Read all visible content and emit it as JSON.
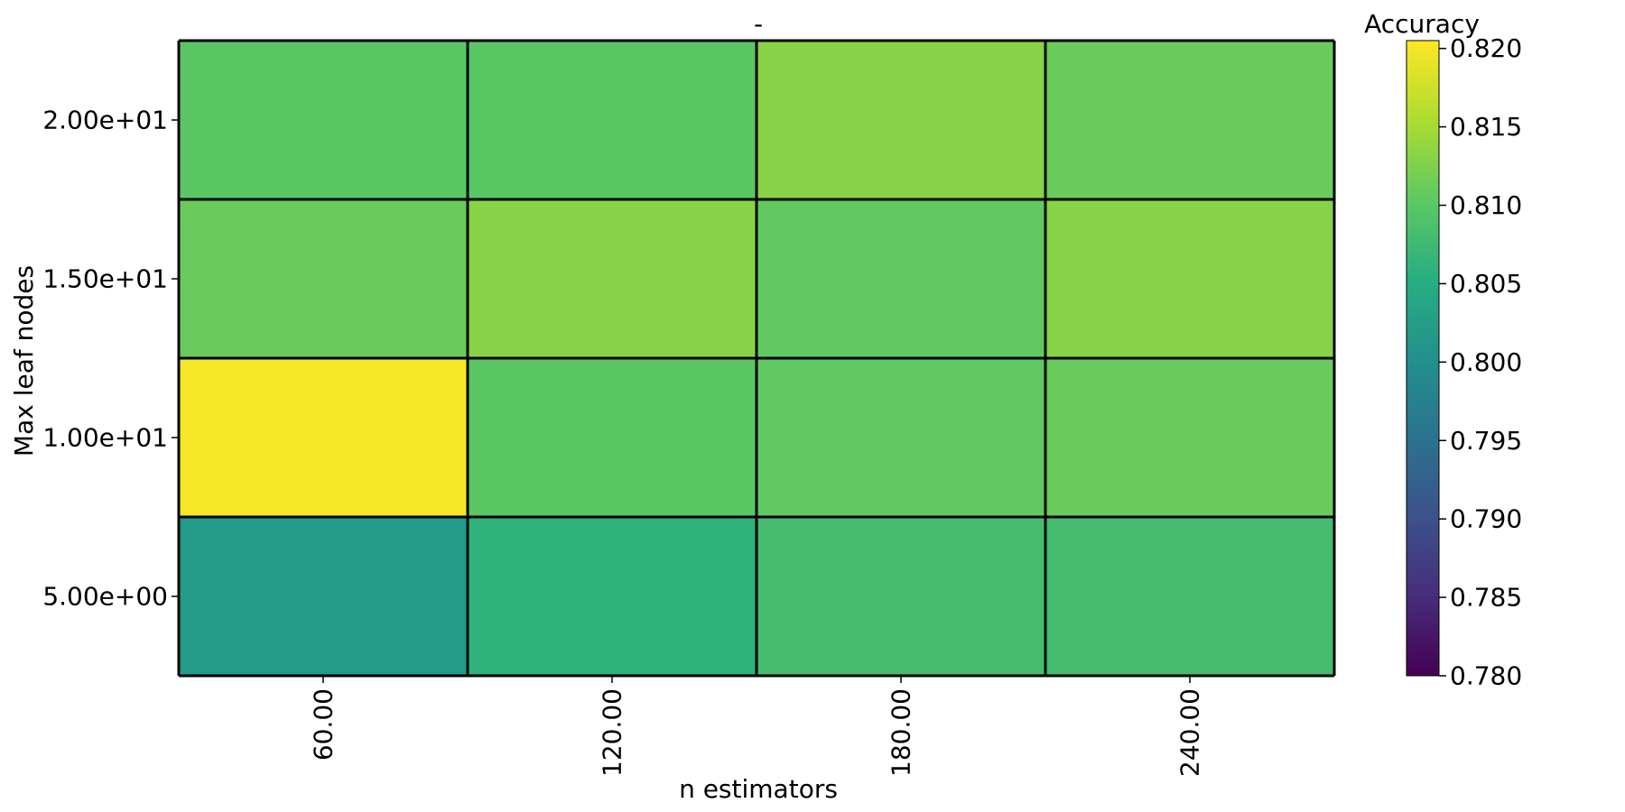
{
  "chart_data": {
    "type": "heatmap",
    "title": "-",
    "xlabel": "n estimators",
    "ylabel": "Max leaf nodes",
    "x_ticks": [
      "60.00",
      "120.00",
      "180.00",
      "240.00"
    ],
    "y_ticks": [
      "2.00e+01",
      "1.50e+01",
      "1.00e+01",
      "5.00e+00"
    ],
    "values": [
      [
        0.81,
        0.81,
        0.813,
        0.811
      ],
      [
        0.811,
        0.813,
        0.8105,
        0.813
      ],
      [
        0.82,
        0.81,
        0.8105,
        0.811
      ],
      [
        0.802,
        0.806,
        0.808,
        0.808
      ]
    ],
    "colorbar": {
      "label": "Accuracy",
      "range": [
        0.78,
        0.8205
      ],
      "ticks": [
        "0.820",
        "0.815",
        "0.810",
        "0.805",
        "0.800",
        "0.795",
        "0.790",
        "0.785",
        "0.780"
      ],
      "tick_values": [
        0.82,
        0.815,
        0.81,
        0.805,
        0.8,
        0.795,
        0.79,
        0.785,
        0.78
      ],
      "colormap": "viridis"
    },
    "grid_lines_color": "#000000"
  }
}
